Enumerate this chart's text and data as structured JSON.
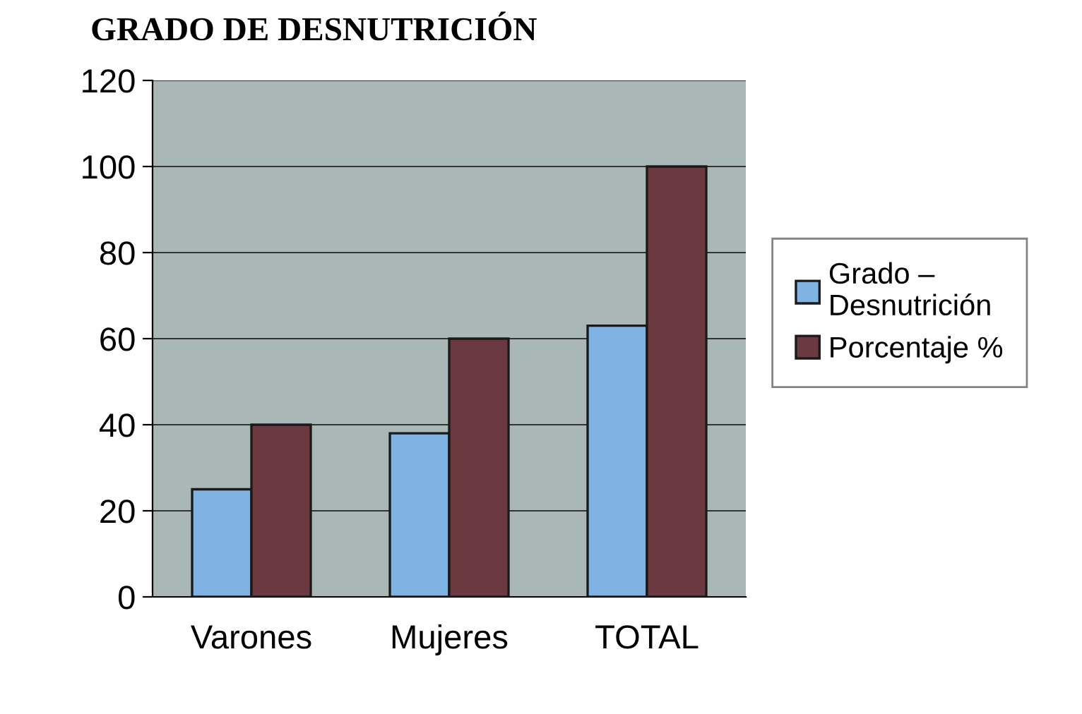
{
  "chart_data": {
    "type": "bar",
    "title": "GRADO DE DESNUTRICIÓN",
    "categories": [
      "Varones",
      "Mujeres",
      "TOTAL"
    ],
    "series": [
      {
        "name": "Grado –\nDesnutrición",
        "color": "#7fb3e3",
        "values": [
          25,
          38,
          63
        ]
      },
      {
        "name": "Porcentaje %",
        "color": "#6a3a40",
        "values": [
          40,
          60,
          100
        ]
      }
    ],
    "ylim": [
      0,
      120
    ],
    "yticks": [
      0,
      20,
      40,
      60,
      80,
      100,
      120
    ],
    "grid": "y",
    "legend": "right"
  }
}
